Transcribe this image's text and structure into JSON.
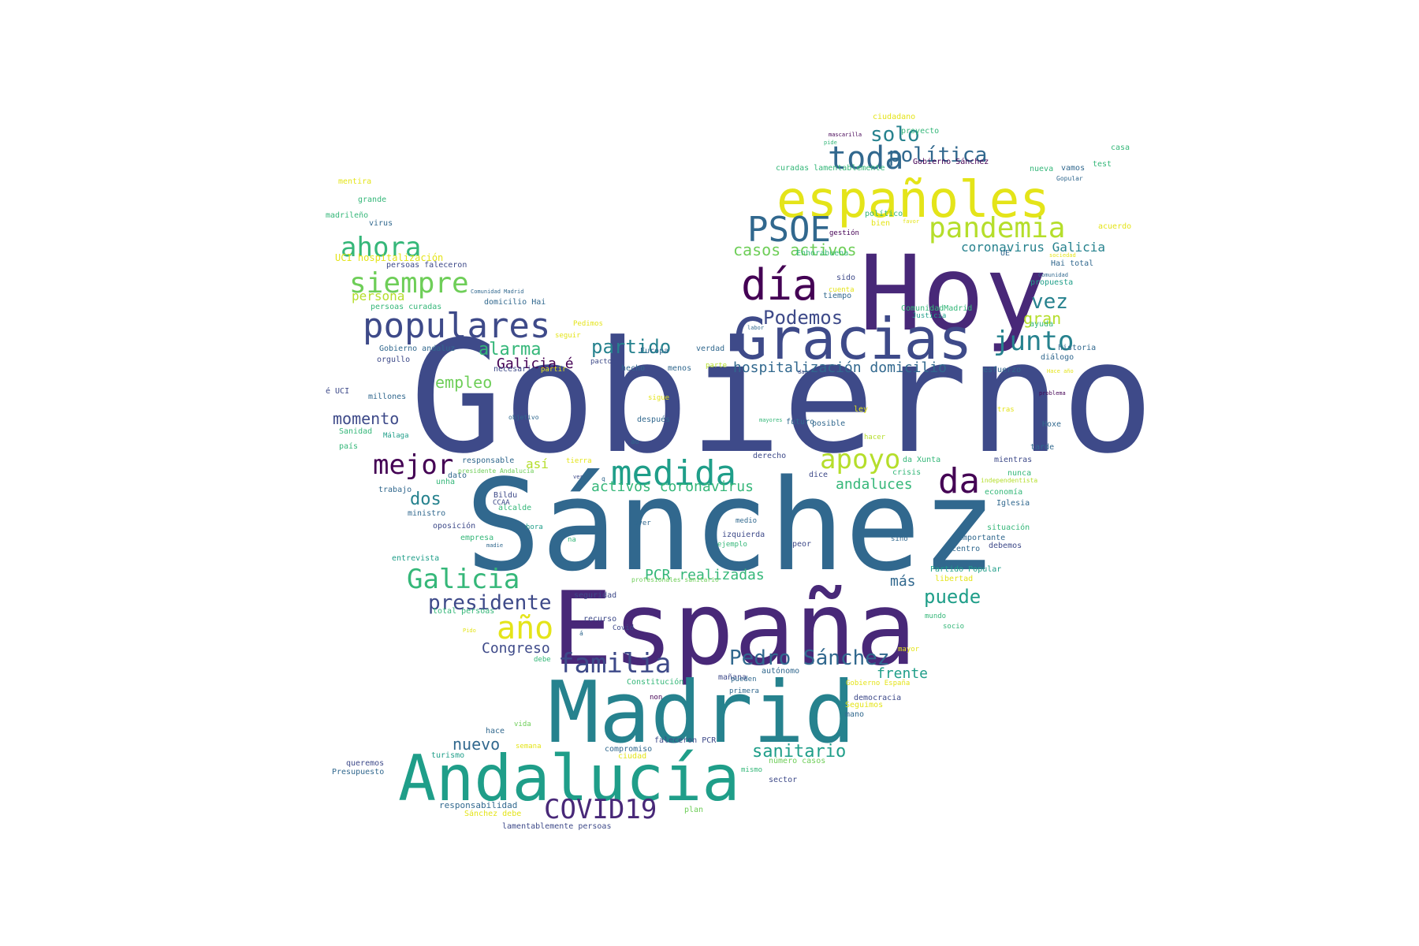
{
  "palette": {
    "d": "#440154",
    "p": "#482878",
    "i": "#3e4a89",
    "b": "#31688e",
    "t": "#26828e",
    "g": "#1f9e89",
    "e": "#35b779",
    "l": "#6ece58",
    "y": "#b5de2b",
    "Y": "#e4e419"
  },
  "words": [
    [
      "Gobierno",
      520,
      560,
      196,
      "i"
    ],
    [
      "Sánchez",
      590,
      712,
      160,
      "b"
    ],
    [
      "España",
      700,
      835,
      128,
      "p"
    ],
    [
      "Hoy",
      1090,
      410,
      132,
      "p"
    ],
    [
      "Madrid",
      695,
      935,
      108,
      "t"
    ],
    [
      "Andalucía",
      505,
      1010,
      80,
      "g"
    ],
    [
      "Gracias",
      930,
      450,
      72,
      "i"
    ],
    [
      "españoles",
      985,
      272,
      64,
      "Y"
    ],
    [
      "populares",
      460,
      426,
      44,
      "i"
    ],
    [
      "día",
      940,
      377,
      54,
      "d"
    ],
    [
      "PSOE",
      948,
      304,
      44,
      "b"
    ],
    [
      "toda",
      1050,
      212,
      40,
      "b"
    ],
    [
      "pandemia",
      1178,
      300,
      36,
      "y"
    ],
    [
      "ahora",
      432,
      324,
      34,
      "e"
    ],
    [
      "siempre",
      443,
      370,
      36,
      "l"
    ],
    [
      "medida",
      775,
      613,
      44,
      "g"
    ],
    [
      "apoyo",
      1040,
      593,
      34,
      "y"
    ],
    [
      "da",
      1190,
      623,
      44,
      "d"
    ],
    [
      "mejor",
      473,
      600,
      34,
      "d"
    ],
    [
      "junto",
      1260,
      443,
      34,
      "t"
    ],
    [
      "política",
      1127,
      204,
      26,
      "b"
    ],
    [
      "solo",
      1104,
      178,
      26,
      "t"
    ],
    [
      "Galicia",
      516,
      745,
      34,
      "e"
    ],
    [
      "presidente",
      543,
      772,
      26,
      "i"
    ],
    [
      "año",
      630,
      808,
      40,
      "Y"
    ],
    [
      "familia",
      708,
      852,
      34,
      "i"
    ],
    [
      "Pedro Sánchez",
      925,
      842,
      26,
      "b"
    ],
    [
      "COVID19",
      690,
      1037,
      34,
      "p"
    ],
    [
      "partido",
      750,
      447,
      24,
      "t"
    ],
    [
      "alarma",
      607,
      450,
      22,
      "e"
    ],
    [
      "Podemos",
      968,
      410,
      24,
      "i"
    ],
    [
      "vez",
      1308,
      390,
      26,
      "t"
    ],
    [
      "gran",
      1298,
      410,
      20,
      "y"
    ],
    [
      "casos activos",
      930,
      323,
      20,
      "l"
    ],
    [
      "coronavirus Galicia",
      1219,
      318,
      16,
      "t"
    ],
    [
      "hospitalización domicilio",
      930,
      472,
      18,
      "b"
    ],
    [
      "Galicia é",
      630,
      467,
      18,
      "d"
    ],
    [
      "momento",
      422,
      537,
      20,
      "i"
    ],
    [
      "empleo",
      552,
      491,
      20,
      "l"
    ],
    [
      "dos",
      520,
      640,
      22,
      "t"
    ],
    [
      "así",
      667,
      593,
      16,
      "y"
    ],
    [
      "activos coronavirus",
      750,
      623,
      18,
      "e"
    ],
    [
      "andaluces",
      1060,
      620,
      18,
      "e"
    ],
    [
      "puede",
      1172,
      764,
      24,
      "g"
    ],
    [
      "frente",
      1112,
      860,
      18,
      "g"
    ],
    [
      "más",
      1129,
      743,
      18,
      "b"
    ],
    [
      "PCR realizadas",
      818,
      735,
      18,
      "e"
    ],
    [
      "Congreso",
      611,
      828,
      18,
      "i"
    ],
    [
      "nuevo",
      574,
      950,
      20,
      "b"
    ],
    [
      "sanitario",
      954,
      960,
      22,
      "g"
    ],
    [
      "persona",
      446,
      380,
      16,
      "y"
    ],
    [
      "UCI hospitalización",
      425,
      330,
      12,
      "Y"
    ],
    [
      "persoas faleceron",
      490,
      340,
      10,
      "i"
    ],
    [
      "persoas curadas",
      470,
      393,
      10,
      "e"
    ],
    [
      "domicilio Hai",
      614,
      387,
      10,
      "b"
    ],
    [
      "Gobierno andaluz",
      481,
      446,
      10,
      "b"
    ],
    [
      "orgullo",
      478,
      460,
      10,
      "i"
    ],
    [
      "responsabilidad",
      557,
      1025,
      11,
      "b"
    ],
    [
      "Sánchez debe",
      589,
      1036,
      10,
      "Y"
    ],
    [
      "lamentablemente persoas",
      637,
      1052,
      10,
      "i"
    ],
    [
      "compromiso",
      767,
      954,
      10,
      "b"
    ],
    [
      "faleceron PCR",
      830,
      943,
      10,
      "i"
    ],
    [
      "número casos",
      975,
      969,
      10,
      "l"
    ],
    [
      "mismo",
      940,
      980,
      9,
      "e"
    ],
    [
      "sector",
      975,
      993,
      10,
      "i"
    ],
    [
      "plan",
      868,
      1031,
      10,
      "l"
    ],
    [
      "ciudad",
      784,
      963,
      10,
      "Y"
    ],
    [
      "turismo",
      547,
      962,
      10,
      "g"
    ],
    [
      "semana",
      654,
      950,
      9,
      "Y"
    ],
    [
      "hace",
      616,
      931,
      10,
      "b"
    ],
    [
      "vida",
      652,
      922,
      9,
      "l"
    ],
    [
      "queremos",
      439,
      972,
      10,
      "i"
    ],
    [
      "Presupuesto",
      421,
      983,
      10,
      "b"
    ],
    [
      "Constitución",
      795,
      869,
      10,
      "e"
    ],
    [
      "mañana",
      911,
      863,
      10,
      "i"
    ],
    [
      "autónomo",
      966,
      855,
      10,
      "b"
    ],
    [
      "Gobierno España",
      1073,
      870,
      9,
      "Y"
    ],
    [
      "democracia",
      1083,
      889,
      10,
      "i"
    ],
    [
      "Seguimos",
      1072,
      898,
      10,
      "Y"
    ],
    [
      "mano",
      1072,
      910,
      10,
      "b"
    ],
    [
      "pueden",
      927,
      865,
      9,
      "b"
    ],
    [
      "primera",
      925,
      880,
      9,
      "b"
    ],
    [
      "mayor",
      1139,
      827,
      9,
      "Y"
    ],
    [
      "socio",
      1196,
      798,
      9,
      "e"
    ],
    [
      "mundo",
      1173,
      785,
      9,
      "e"
    ],
    [
      "libertad",
      1186,
      738,
      10,
      "Y"
    ],
    [
      "Partido Popular",
      1180,
      726,
      10,
      "g"
    ],
    [
      "importante",
      1215,
      686,
      10,
      "b"
    ],
    [
      "centro",
      1207,
      700,
      10,
      "b"
    ],
    [
      "debemos",
      1254,
      696,
      10,
      "i"
    ],
    [
      "situación",
      1252,
      673,
      10,
      "e"
    ],
    [
      "sino",
      1130,
      687,
      9,
      "b"
    ],
    [
      "peor",
      1005,
      694,
      10,
      "i"
    ],
    [
      "izquierda",
      916,
      682,
      10,
      "i"
    ],
    [
      "medio",
      933,
      664,
      9,
      "b"
    ],
    [
      "ejemplo",
      910,
      694,
      9,
      "e"
    ],
    [
      "ayer",
      804,
      667,
      9,
      "b"
    ],
    [
      "Covid",
      777,
      800,
      9,
      "i"
    ],
    [
      "recurso",
      740,
      789,
      10,
      "i"
    ],
    [
      "seguridad",
      728,
      759,
      10,
      "i"
    ],
    [
      "total persoas",
      549,
      779,
      10,
      "e"
    ],
    [
      "entrevista",
      497,
      712,
      10,
      "g"
    ],
    [
      "oposición",
      549,
      671,
      10,
      "i"
    ],
    [
      "hora",
      667,
      672,
      9,
      "g"
    ],
    [
      "empresa",
      584,
      686,
      10,
      "e"
    ],
    [
      "alcalde",
      632,
      648,
      10,
      "e"
    ],
    [
      "Bildu",
      626,
      632,
      10,
      "i"
    ],
    [
      "CCAA",
      625,
      641,
      9,
      "i"
    ],
    [
      "ministro",
      517,
      655,
      10,
      "b"
    ],
    [
      "trabajo",
      480,
      625,
      10,
      "b"
    ],
    [
      "unha",
      553,
      615,
      10,
      "e"
    ],
    [
      "dato",
      568,
      607,
      10,
      "b"
    ],
    [
      "responsable",
      586,
      588,
      10,
      "b"
    ],
    [
      "presidente Andalucía",
      581,
      600,
      8,
      "l"
    ],
    [
      "tierra",
      718,
      588,
      9,
      "Y"
    ],
    [
      "q",
      763,
      610,
      8,
      "b"
    ],
    [
      "ver",
      727,
      607,
      7,
      "i"
    ],
    [
      "na",
      720,
      688,
      9,
      "e"
    ],
    [
      "ao",
      800,
      564,
      9,
      "b"
    ],
    [
      "después",
      808,
      536,
      10,
      "b"
    ],
    [
      "objetivo",
      645,
      532,
      8,
      "b"
    ],
    [
      "Málaga",
      486,
      556,
      9,
      "g"
    ],
    [
      "país",
      430,
      570,
      10,
      "e"
    ],
    [
      "Sanidad",
      430,
      551,
      10,
      "e"
    ],
    [
      "millones",
      467,
      507,
      10,
      "b"
    ],
    [
      "é UCI",
      413,
      500,
      10,
      "i"
    ],
    [
      "necesario",
      626,
      472,
      10,
      "i"
    ],
    [
      "partir",
      686,
      472,
      9,
      "Y"
    ],
    [
      "pacto",
      749,
      462,
      9,
      "i"
    ],
    [
      "hecho",
      788,
      471,
      10,
      "b"
    ],
    [
      "menos",
      847,
      471,
      10,
      "b"
    ],
    [
      "parte",
      895,
      467,
      9,
      "y"
    ],
    [
      "Europa",
      812,
      449,
      10,
      "b"
    ],
    [
      "verdad",
      883,
      446,
      10,
      "b"
    ],
    [
      "seguir",
      704,
      429,
      9,
      "Y"
    ],
    [
      "Pedimos",
      727,
      414,
      9,
      "Y"
    ],
    [
      "labor",
      948,
      418,
      7,
      "b"
    ],
    [
      "dar",
      1012,
      474,
      7,
      "i"
    ],
    [
      "sigue",
      822,
      508,
      9,
      "Y"
    ],
    [
      "futuro",
      997,
      539,
      10,
      "b"
    ],
    [
      "posible",
      1030,
      541,
      10,
      "b"
    ],
    [
      "ley",
      1083,
      523,
      10,
      "Y"
    ],
    [
      "hacer",
      1096,
      558,
      9,
      "y"
    ],
    [
      "mayores",
      963,
      535,
      7,
      "e"
    ],
    [
      "derecho",
      955,
      582,
      10,
      "i"
    ],
    [
      "dice",
      1026,
      606,
      10,
      "i"
    ],
    [
      "crisis",
      1132,
      603,
      10,
      "e"
    ],
    [
      "da Xunta",
      1145,
      587,
      10,
      "e"
    ],
    [
      "mientras",
      1261,
      587,
      10,
      "i"
    ],
    [
      "nunca",
      1278,
      604,
      10,
      "e"
    ],
    [
      "independentista",
      1244,
      612,
      8,
      "y"
    ],
    [
      "economía",
      1249,
      628,
      10,
      "e"
    ],
    [
      "Iglesia",
      1264,
      642,
      10,
      "b"
    ],
    [
      "tarde",
      1307,
      571,
      10,
      "b"
    ],
    [
      "Hoxe",
      1322,
      542,
      10,
      "b"
    ],
    [
      "tras",
      1265,
      523,
      9,
      "Y"
    ],
    [
      "problema",
      1318,
      501,
      7,
      "d"
    ],
    [
      "esfuerzo",
      1247,
      473,
      10,
      "b"
    ],
    [
      "diálogo",
      1320,
      457,
      10,
      "b"
    ],
    [
      "historia",
      1342,
      445,
      10,
      "b"
    ],
    [
      "Hai total",
      1333,
      338,
      10,
      "b"
    ],
    [
      "ayuda",
      1306,
      415,
      10,
      "e"
    ],
    [
      "propuesta",
      1307,
      362,
      10,
      "g"
    ],
    [
      "Comunidad",
      1317,
      351,
      7,
      "b"
    ],
    [
      "sociedad",
      1331,
      326,
      7,
      "Y"
    ],
    [
      "ComunidadMadrid",
      1143,
      395,
      10,
      "e"
    ],
    [
      "Justicia",
      1157,
      404,
      9,
      "g"
    ],
    [
      "sido",
      1061,
      356,
      10,
      "i"
    ],
    [
      "tiempo",
      1044,
      379,
      10,
      "b"
    ],
    [
      "cuenta",
      1051,
      371,
      9,
      "Y"
    ],
    [
      "Enhorabuena",
      1010,
      325,
      10,
      "e"
    ],
    [
      "gestión",
      1052,
      299,
      9,
      "d"
    ],
    [
      "UE",
      1269,
      325,
      10,
      "b"
    ],
    [
      "político",
      1097,
      275,
      10,
      "e"
    ],
    [
      "bien",
      1105,
      287,
      10,
      "Y"
    ],
    [
      "favor",
      1145,
      283,
      7,
      "Y"
    ],
    [
      "acuerdo",
      1393,
      291,
      10,
      "Y"
    ],
    [
      "vamos",
      1346,
      217,
      10,
      "b"
    ],
    [
      "nueva",
      1306,
      218,
      10,
      "e"
    ],
    [
      "test",
      1386,
      212,
      10,
      "e"
    ],
    [
      "Gopular",
      1340,
      229,
      8,
      "b"
    ],
    [
      "casa",
      1409,
      191,
      10,
      "e"
    ],
    [
      "Gobierno Sánchez",
      1158,
      209,
      10,
      "d"
    ],
    [
      "curadas lamentablemente",
      984,
      217,
      10,
      "e"
    ],
    [
      "proyecto",
      1143,
      170,
      10,
      "e"
    ],
    [
      "ciudadano",
      1107,
      152,
      10,
      "Y"
    ],
    [
      "mascarilla",
      1051,
      173,
      7,
      "d"
    ],
    [
      "pide",
      1045,
      183,
      7,
      "e"
    ],
    [
      "mentira",
      429,
      234,
      10,
      "Y"
    ],
    [
      "grande",
      454,
      257,
      10,
      "e"
    ],
    [
      "madrileño",
      413,
      277,
      10,
      "e"
    ],
    [
      "virus",
      468,
      287,
      10,
      "b"
    ],
    [
      "Comunidad Madrid",
      597,
      372,
      7,
      "b"
    ],
    [
      "debe",
      677,
      840,
      9,
      "e"
    ],
    [
      "á",
      735,
      806,
      8,
      "b"
    ],
    [
      "non",
      824,
      888,
      9,
      "d"
    ],
    [
      "Pido",
      587,
      802,
      7,
      "Y"
    ],
    [
      "madie",
      617,
      694,
      7,
      "b"
    ],
    [
      "profesionales sanitario",
      801,
      738,
      8,
      "l"
    ],
    [
      "Hace año",
      1328,
      473,
      7,
      "Y"
    ]
  ]
}
